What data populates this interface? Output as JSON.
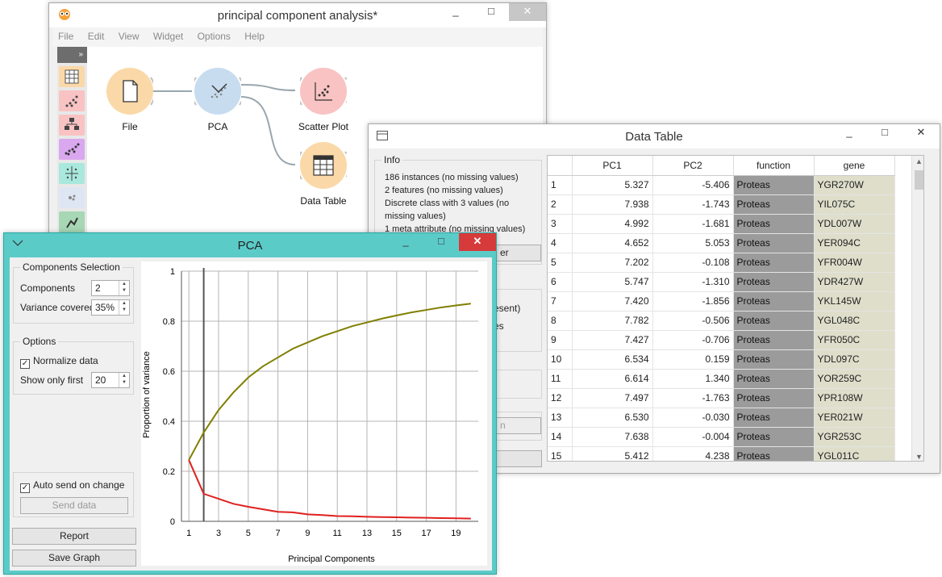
{
  "main_window": {
    "title": "principal component analysis*",
    "controls": {
      "minimize": "_",
      "maximize": "□",
      "close": "✕"
    },
    "menu": [
      "File",
      "Edit",
      "View",
      "Widget",
      "Options",
      "Help"
    ],
    "toolbox_toggle": "»",
    "nodes": [
      {
        "label": "File",
        "icon": "file-icon",
        "color": "#fbd8a8"
      },
      {
        "label": "PCA",
        "icon": "pca-icon",
        "color": "#c7dcef"
      },
      {
        "label": "Scatter Plot",
        "icon": "scatter-plot-icon",
        "color": "#f9c3c3"
      },
      {
        "label": "Data Table",
        "icon": "data-table-icon",
        "color": "#fbd8a8"
      }
    ]
  },
  "data_table": {
    "title": "Data Table",
    "info_title": "Info",
    "info_lines": [
      "186 instances (no missing values)",
      "2 features (no missing values)",
      "Discrete class with 3 values (no missing values)",
      "1 meta attribute (no missing values)"
    ],
    "partial_button": "er",
    "partial_text_1": "esent)",
    "partial_text_2": "es",
    "partial_button_2": "n",
    "columns": [
      "PC1",
      "PC2",
      "function",
      "gene"
    ],
    "rows": [
      [
        "1",
        "5.327",
        "-5.406",
        "Proteas",
        "YGR270W"
      ],
      [
        "2",
        "7.938",
        "-1.743",
        "Proteas",
        "YIL075C"
      ],
      [
        "3",
        "4.992",
        "-1.681",
        "Proteas",
        "YDL007W"
      ],
      [
        "4",
        "4.652",
        "5.053",
        "Proteas",
        "YER094C"
      ],
      [
        "5",
        "7.202",
        "-0.108",
        "Proteas",
        "YFR004W"
      ],
      [
        "6",
        "5.747",
        "-1.310",
        "Proteas",
        "YDR427W"
      ],
      [
        "7",
        "7.420",
        "-1.856",
        "Proteas",
        "YKL145W"
      ],
      [
        "8",
        "7.782",
        "-0.506",
        "Proteas",
        "YGL048C"
      ],
      [
        "9",
        "7.427",
        "-0.706",
        "Proteas",
        "YFR050C"
      ],
      [
        "10",
        "6.534",
        "0.159",
        "Proteas",
        "YDL097C"
      ],
      [
        "11",
        "6.614",
        "1.340",
        "Proteas",
        "YOR259C"
      ],
      [
        "12",
        "7.497",
        "-1.763",
        "Proteas",
        "YPR108W"
      ],
      [
        "13",
        "6.530",
        "-0.030",
        "Proteas",
        "YER021W"
      ],
      [
        "14",
        "7.638",
        "-0.004",
        "Proteas",
        "YGR253C"
      ],
      [
        "15",
        "5.412",
        "4.238",
        "Proteas",
        "YGL011C"
      ]
    ]
  },
  "pca_window": {
    "title": "PCA",
    "components_selection": {
      "title": "Components Selection",
      "components_label": "Components",
      "components_value": "2",
      "variance_label": "Variance covered",
      "variance_value": "35%"
    },
    "options": {
      "title": "Options",
      "normalize_label": "Normalize data",
      "normalize_checked": true,
      "show_only_label": "Show only first",
      "show_only_value": "20"
    },
    "auto_send_label": "Auto send on change",
    "send_data_label": "Send data",
    "report_label": "Report",
    "save_graph_label": "Save Graph"
  },
  "chart_data": {
    "type": "line",
    "xlabel": "Principal Components",
    "ylabel": "Proportion of variance",
    "x_ticks": [
      1,
      3,
      5,
      7,
      9,
      11,
      13,
      15,
      17,
      19
    ],
    "y_ticks": [
      "0",
      "0.2",
      "0.4",
      "0.6",
      "0.8",
      "1"
    ],
    "xlim": [
      0.5,
      20.5
    ],
    "ylim": [
      0,
      1
    ],
    "selected_component": 2,
    "x": [
      1,
      2,
      3,
      4,
      5,
      6,
      7,
      8,
      9,
      10,
      11,
      12,
      13,
      14,
      15,
      16,
      17,
      18,
      19,
      20
    ],
    "series": [
      {
        "color": "#7f7f00",
        "values": [
          0.245,
          0.355,
          0.445,
          0.515,
          0.575,
          0.62,
          0.655,
          0.69,
          0.715,
          0.74,
          0.76,
          0.78,
          0.795,
          0.81,
          0.823,
          0.835,
          0.845,
          0.855,
          0.863,
          0.87
        ]
      },
      {
        "color": "#e02020",
        "values": [
          0.245,
          0.11,
          0.09,
          0.07,
          0.058,
          0.048,
          0.038,
          0.036,
          0.028,
          0.025,
          0.021,
          0.02,
          0.018,
          0.017,
          0.016,
          0.015,
          0.014,
          0.013,
          0.012,
          0.011
        ]
      }
    ]
  }
}
